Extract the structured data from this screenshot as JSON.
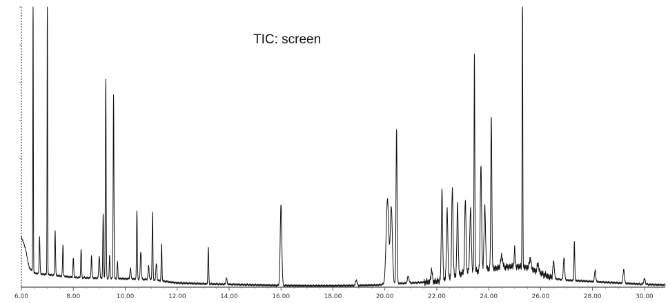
{
  "chart_data": {
    "type": "line",
    "title": "TIC: screen",
    "xlabel": "",
    "ylabel": "",
    "xlim": [
      6.0,
      30.8
    ],
    "ylim": [
      0,
      100
    ],
    "x_ticks": [
      6.0,
      8.0,
      10.0,
      12.0,
      14.0,
      16.0,
      18.0,
      20.0,
      22.0,
      24.0,
      26.0,
      28.0,
      30.0
    ],
    "x_tick_labels": [
      "6.00",
      "8.00",
      "10.00",
      "12.00",
      "14.00",
      "16.00",
      "18.00",
      "20.00",
      "22.00",
      "24.00",
      "26.00",
      "28.00",
      "30.00"
    ],
    "grid": false,
    "legend": "none",
    "baseline": [
      [
        6.0,
        18
      ],
      [
        6.15,
        14
      ],
      [
        6.3,
        7
      ],
      [
        6.5,
        5
      ],
      [
        7.0,
        4.5
      ],
      [
        8.0,
        3.5
      ],
      [
        9.0,
        3.2
      ],
      [
        10.0,
        3.0
      ],
      [
        11.0,
        2.7
      ],
      [
        12.0,
        1.5
      ],
      [
        13.0,
        1.2
      ],
      [
        14.0,
        1.0
      ],
      [
        15.0,
        0.8
      ],
      [
        16.0,
        0.6
      ],
      [
        17.0,
        0.5
      ],
      [
        18.0,
        0.5
      ],
      [
        19.0,
        0.6
      ],
      [
        19.8,
        0.8
      ],
      [
        20.0,
        1.2
      ],
      [
        20.8,
        1.4
      ],
      [
        21.0,
        1.5
      ],
      [
        22.0,
        2.0
      ],
      [
        22.5,
        3.5
      ],
      [
        23.0,
        5.0
      ],
      [
        24.0,
        6.5
      ],
      [
        25.0,
        7.5
      ],
      [
        25.5,
        7.0
      ],
      [
        26.0,
        5.0
      ],
      [
        26.5,
        3.0
      ],
      [
        27.0,
        2.5
      ],
      [
        28.0,
        2.0
      ],
      [
        29.0,
        1.5
      ],
      [
        30.0,
        1.0
      ],
      [
        30.8,
        0.8
      ]
    ],
    "peaks": [
      [
        6.45,
        100,
        0.01
      ],
      [
        6.7,
        13,
        0.015
      ],
      [
        7.0,
        100,
        0.01
      ],
      [
        7.3,
        16,
        0.015
      ],
      [
        7.6,
        11,
        0.015
      ],
      [
        8.0,
        7,
        0.015
      ],
      [
        8.3,
        10,
        0.015
      ],
      [
        8.7,
        8,
        0.015
      ],
      [
        9.0,
        8,
        0.02
      ],
      [
        9.15,
        23,
        0.015
      ],
      [
        9.25,
        71,
        0.015
      ],
      [
        9.4,
        8,
        0.015
      ],
      [
        9.55,
        66,
        0.015
      ],
      [
        9.7,
        6,
        0.015
      ],
      [
        10.2,
        4,
        0.02
      ],
      [
        10.45,
        24,
        0.015
      ],
      [
        10.6,
        10,
        0.02
      ],
      [
        10.9,
        5,
        0.02
      ],
      [
        11.05,
        24,
        0.015
      ],
      [
        11.2,
        6,
        0.02
      ],
      [
        11.4,
        13,
        0.015
      ],
      [
        13.2,
        13,
        0.015
      ],
      [
        13.9,
        2.5,
        0.02
      ],
      [
        16.0,
        29,
        0.03
      ],
      [
        18.9,
        2.0,
        0.03
      ],
      [
        20.1,
        30,
        0.05
      ],
      [
        20.25,
        27,
        0.04
      ],
      [
        20.45,
        55,
        0.02
      ],
      [
        20.9,
        2.5,
        0.03
      ],
      [
        21.8,
        4,
        0.03
      ],
      [
        22.2,
        32,
        0.025
      ],
      [
        22.4,
        25,
        0.025
      ],
      [
        22.6,
        32,
        0.025
      ],
      [
        22.8,
        25,
        0.025
      ],
      [
        23.1,
        26,
        0.025
      ],
      [
        23.3,
        22,
        0.03
      ],
      [
        23.45,
        77,
        0.015
      ],
      [
        23.7,
        38,
        0.025
      ],
      [
        23.85,
        22,
        0.03
      ],
      [
        24.1,
        55,
        0.02
      ],
      [
        24.5,
        4,
        0.04
      ],
      [
        25.0,
        6,
        0.02
      ],
      [
        25.3,
        100,
        0.012
      ],
      [
        25.6,
        4,
        0.03
      ],
      [
        25.9,
        3,
        0.03
      ],
      [
        26.5,
        6,
        0.03
      ],
      [
        26.9,
        8,
        0.025
      ],
      [
        27.3,
        14,
        0.015
      ],
      [
        28.1,
        4,
        0.025
      ],
      [
        29.2,
        5,
        0.025
      ],
      [
        30.0,
        2,
        0.03
      ]
    ]
  }
}
